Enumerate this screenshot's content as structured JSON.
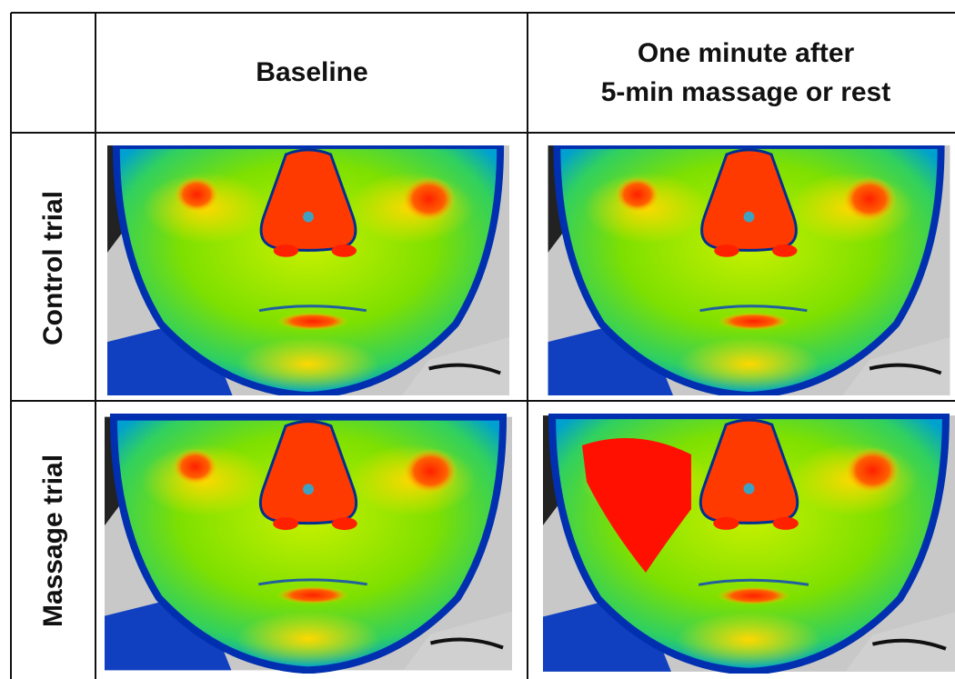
{
  "header": {
    "columns": [
      {
        "lines": [
          "Baseline"
        ]
      },
      {
        "lines": [
          "One minute after",
          "5-min massage or rest"
        ]
      }
    ]
  },
  "rows": [
    "Control trial",
    "Massage trial"
  ]
}
